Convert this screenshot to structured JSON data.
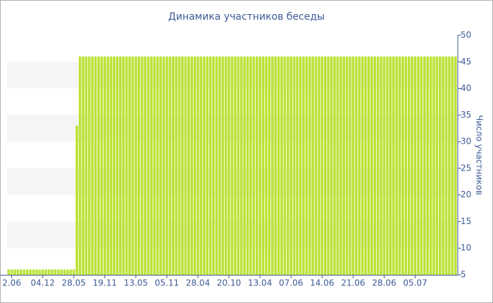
{
  "chart_data": {
    "type": "bar",
    "title": "Динамика участников беседы",
    "y_axis_label": "Число участников",
    "categories": [
      null,
      "2.06",
      null,
      null,
      null,
      null,
      null,
      null,
      null,
      null,
      null,
      "04.12",
      null,
      null,
      null,
      null,
      null,
      null,
      null,
      null,
      null,
      "28.05",
      null,
      null,
      null,
      null,
      null,
      null,
      null,
      null,
      null,
      "19.11",
      null,
      null,
      null,
      null,
      null,
      null,
      null,
      null,
      null,
      "13.05",
      null,
      null,
      null,
      null,
      null,
      null,
      null,
      null,
      null,
      "05.11",
      null,
      null,
      null,
      null,
      null,
      null,
      null,
      null,
      null,
      "28.04",
      null,
      null,
      null,
      null,
      null,
      null,
      null,
      null,
      null,
      "20.10",
      null,
      null,
      null,
      null,
      null,
      null,
      null,
      null,
      null,
      "13.04",
      null,
      null,
      null,
      null,
      null,
      null,
      null,
      null,
      null,
      "07.06",
      null,
      null,
      null,
      null,
      null,
      null,
      null,
      null,
      null,
      "14.06",
      null,
      null,
      null,
      null,
      null,
      null,
      null,
      null,
      null,
      "21.06",
      null,
      null,
      null,
      null,
      null,
      null,
      null,
      null,
      null,
      "28.06",
      null,
      null,
      null,
      null,
      null,
      null,
      null,
      null,
      null,
      "05.07",
      null,
      null,
      null,
      null,
      null,
      null,
      null,
      null,
      null,
      null,
      null,
      null,
      null
    ],
    "values": [
      6,
      6,
      6,
      6,
      6,
      6,
      6,
      6,
      6,
      6,
      6,
      6,
      6,
      6,
      6,
      6,
      6,
      6,
      6,
      6,
      6,
      6,
      33,
      46,
      46,
      46,
      46,
      46,
      46,
      46,
      46,
      46,
      46,
      46,
      46,
      46,
      46,
      46,
      46,
      46,
      46,
      46,
      46,
      46,
      46,
      46,
      46,
      46,
      46,
      46,
      46,
      46,
      46,
      46,
      46,
      46,
      46,
      46,
      46,
      46,
      46,
      46,
      46,
      46,
      46,
      46,
      46,
      46,
      46,
      46,
      46,
      46,
      46,
      46,
      46,
      46,
      46,
      46,
      46,
      46,
      46,
      46,
      46,
      46,
      46,
      46,
      46,
      46,
      46,
      46,
      46,
      46,
      46,
      46,
      46,
      46,
      46,
      46,
      46,
      46,
      46,
      46,
      46,
      46,
      46,
      46,
      46,
      46,
      46,
      46,
      46,
      46,
      46,
      46,
      46,
      46,
      46,
      46,
      46,
      46,
      46,
      46,
      46,
      46,
      46,
      46,
      46,
      46,
      46,
      46,
      46,
      46,
      46,
      46,
      46,
      46,
      46,
      46,
      46,
      46,
      46,
      46,
      46,
      46,
      46
    ],
    "color": "#bce236",
    "ylim": [
      5,
      50
    ],
    "yticks": [
      5,
      10,
      15,
      20,
      25,
      30,
      35,
      40,
      45,
      50
    ],
    "grid": "bands",
    "y_axis_side": "right"
  }
}
